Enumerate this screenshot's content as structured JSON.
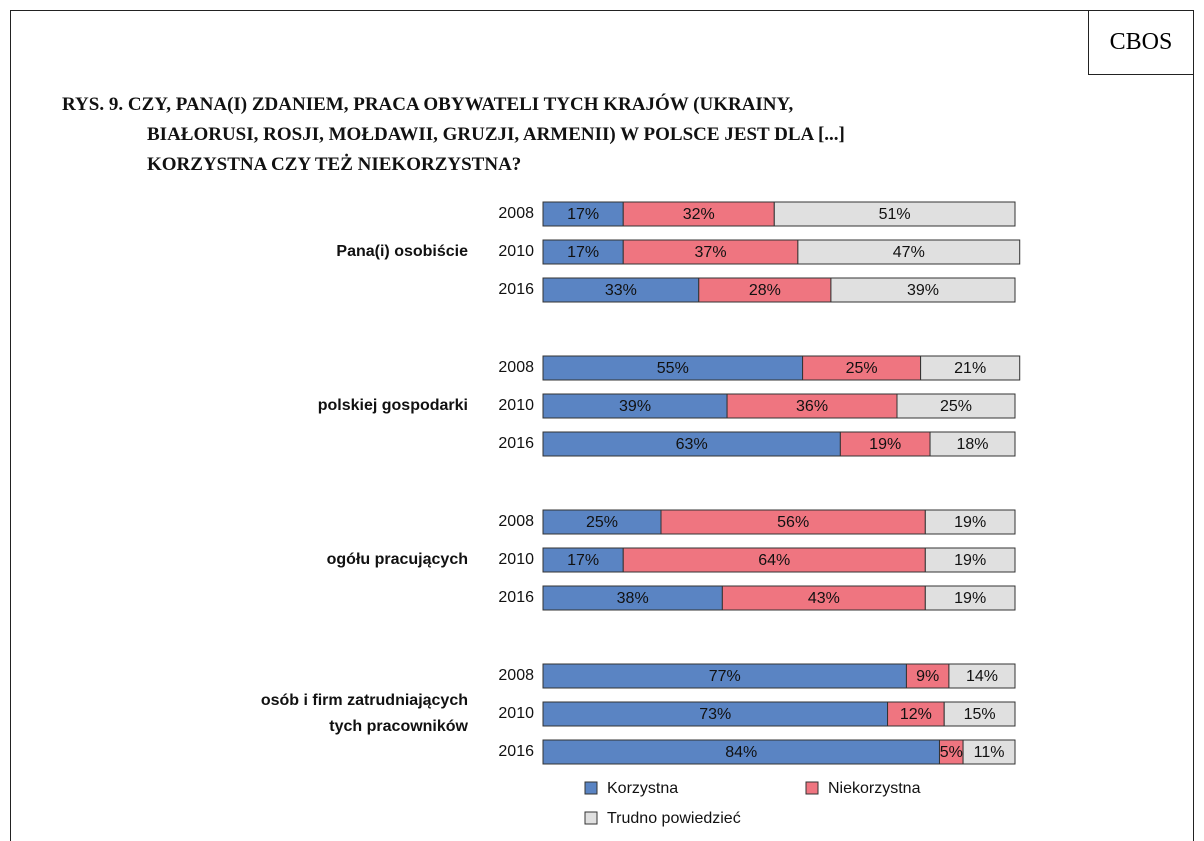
{
  "chart_data": {
    "type": "stacked-bar-h",
    "source": "CBOS",
    "title": "RYS. 9. CZY, PANA(I) ZDANIEM, PRACA OBYWATELI TYCH KRAJÓW (UKRAINY,\nBIAŁORUSI, ROSJI, MOŁDAWII, GRUZJI, ARMENII) W POLSCE JEST DLA [...]\nKORZYSTNA CZY TEŻ NIEKORZYSTNA?",
    "groups": [
      "Pana(i) osobiście",
      "polskiej gospodarki",
      "ogółu pracujących",
      "osób i firm zatrudniających\ntych pracowników"
    ],
    "categories": [
      "2008",
      "2010",
      "2016",
      "2008",
      "2010",
      "2016",
      "2008",
      "2010",
      "2016",
      "2008",
      "2010",
      "2016"
    ],
    "xlim": [
      0,
      100
    ],
    "series": [
      {
        "name": "Korzystna",
        "color": "#5a84c3",
        "values": [
          17,
          17,
          33,
          55,
          39,
          63,
          25,
          17,
          38,
          77,
          73,
          84
        ],
        "value_labels": [
          "17%",
          "17%",
          "33%",
          "55%",
          "39%",
          "63%",
          "25%",
          "17%",
          "38%",
          "77%",
          "73%",
          "84%"
        ]
      },
      {
        "name": "Niekorzystna",
        "color": "#ef7580",
        "values": [
          32,
          37,
          28,
          25,
          36,
          19,
          56,
          64,
          43,
          9,
          12,
          5
        ],
        "value_labels": [
          "32%",
          "37%",
          "28%",
          "25%",
          "36%",
          "19%",
          "56%",
          "64%",
          "43%",
          "9%",
          "12%",
          "5%"
        ]
      },
      {
        "name": "Trudno powiedzieć",
        "color": "#e0e0e0",
        "values": [
          51,
          47,
          39,
          21,
          25,
          18,
          19,
          19,
          19,
          14,
          15,
          11
        ],
        "value_labels": [
          "51%",
          "47%",
          "39%",
          "21%",
          "25%",
          "18%",
          "19%",
          "19%",
          "19%",
          "14%",
          "15%",
          "11%"
        ]
      }
    ]
  }
}
